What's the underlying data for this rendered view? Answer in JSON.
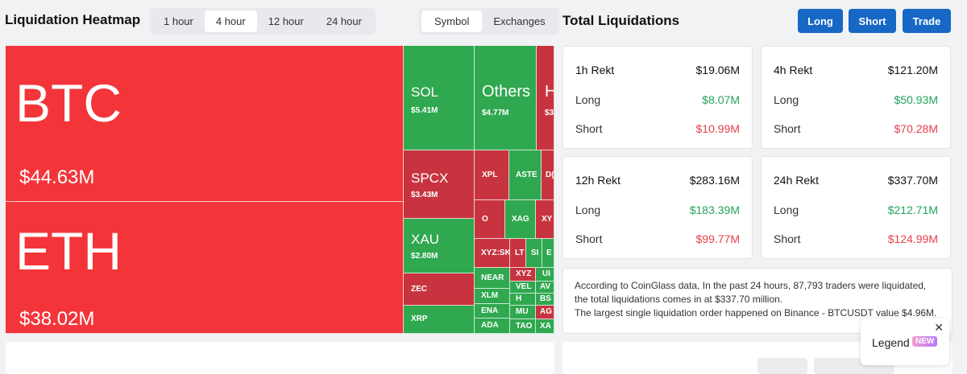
{
  "header": {
    "title": "Liquidation Heatmap",
    "time_tabs": [
      "1 hour",
      "4 hour",
      "12 hour",
      "24 hour"
    ],
    "active_time_tab": "4 hour",
    "view_tabs": [
      "Symbol",
      "Exchanges"
    ],
    "active_view_tab": "Symbol"
  },
  "heatmap": {
    "btc": {
      "symbol": "BTC",
      "value": "$44.63M"
    },
    "eth": {
      "symbol": "ETH",
      "value": "$38.02M"
    },
    "sol": {
      "symbol": "SOL",
      "value": "$5.41M"
    },
    "others": {
      "symbol": "Others",
      "value": "$4.77M"
    },
    "h": {
      "symbol": "H",
      "value": "$3"
    },
    "spcx": {
      "symbol": "SPCX",
      "value": "$3.43M"
    },
    "xau": {
      "symbol": "XAU",
      "value": "$2.80M"
    },
    "zec": {
      "symbol": "ZEC"
    },
    "xrp": {
      "symbol": "XRP"
    },
    "xpl": {
      "symbol": "XPL"
    },
    "aste": {
      "symbol": "ASTE"
    },
    "do": {
      "symbol": "D("
    },
    "o": {
      "symbol": "O"
    },
    "xag": {
      "symbol": "XAG"
    },
    "xy": {
      "symbol": "XY"
    },
    "xyzsk": {
      "symbol": "XYZ:SK"
    },
    "lt": {
      "symbol": "LT"
    },
    "sl": {
      "symbol": "SI"
    },
    "e": {
      "symbol": "E"
    },
    "near": {
      "symbol": "NEAR"
    },
    "xyz2": {
      "symbol": "XYZ"
    },
    "ul": {
      "symbol": "UI"
    },
    "vel": {
      "symbol": "VEL"
    },
    "av": {
      "symbol": "AV"
    },
    "xlm": {
      "symbol": "XLM"
    },
    "hh": {
      "symbol": "H"
    },
    "bs": {
      "symbol": "BS"
    },
    "ena": {
      "symbol": "ENA"
    },
    "mu": {
      "symbol": "MU"
    },
    "ag": {
      "symbol": "AG"
    },
    "ada": {
      "symbol": "ADA"
    },
    "tao": {
      "symbol": "TAO"
    },
    "xa": {
      "symbol": "XA"
    }
  },
  "liquidations": {
    "title": "Total Liquidations",
    "buttons": {
      "long": "Long",
      "short": "Short",
      "trade": "Trade"
    },
    "cards": [
      {
        "label": "1h Rekt",
        "total": "$19.06M",
        "long_label": "Long",
        "long": "$8.07M",
        "short_label": "Short",
        "short": "$10.99M"
      },
      {
        "label": "4h Rekt",
        "total": "$121.20M",
        "long_label": "Long",
        "long": "$50.93M",
        "short_label": "Short",
        "short": "$70.28M"
      },
      {
        "label": "12h Rekt",
        "total": "$283.16M",
        "long_label": "Long",
        "long": "$183.39M",
        "short_label": "Short",
        "short": "$99.77M"
      },
      {
        "label": "24h Rekt",
        "total": "$337.70M",
        "long_label": "Long",
        "long": "$212.71M",
        "short_label": "Short",
        "short": "$124.99M"
      }
    ],
    "info_line1": "According to CoinGlass data, In the past 24 hours, 87,793 traders were liquidated,",
    "info_line2": "the total liquidations comes in at $337.70 million.",
    "info_line3": "The largest single liquidation order happened on Binance - BTCUSDT value $4.96M."
  },
  "legend": {
    "label": "Legend",
    "badge": "NEW",
    "close": "✕"
  },
  "colors": {
    "red": "#f3353a",
    "dark_red": "#c7343f",
    "green": "#2fa84f",
    "accent": "#1767c5"
  }
}
